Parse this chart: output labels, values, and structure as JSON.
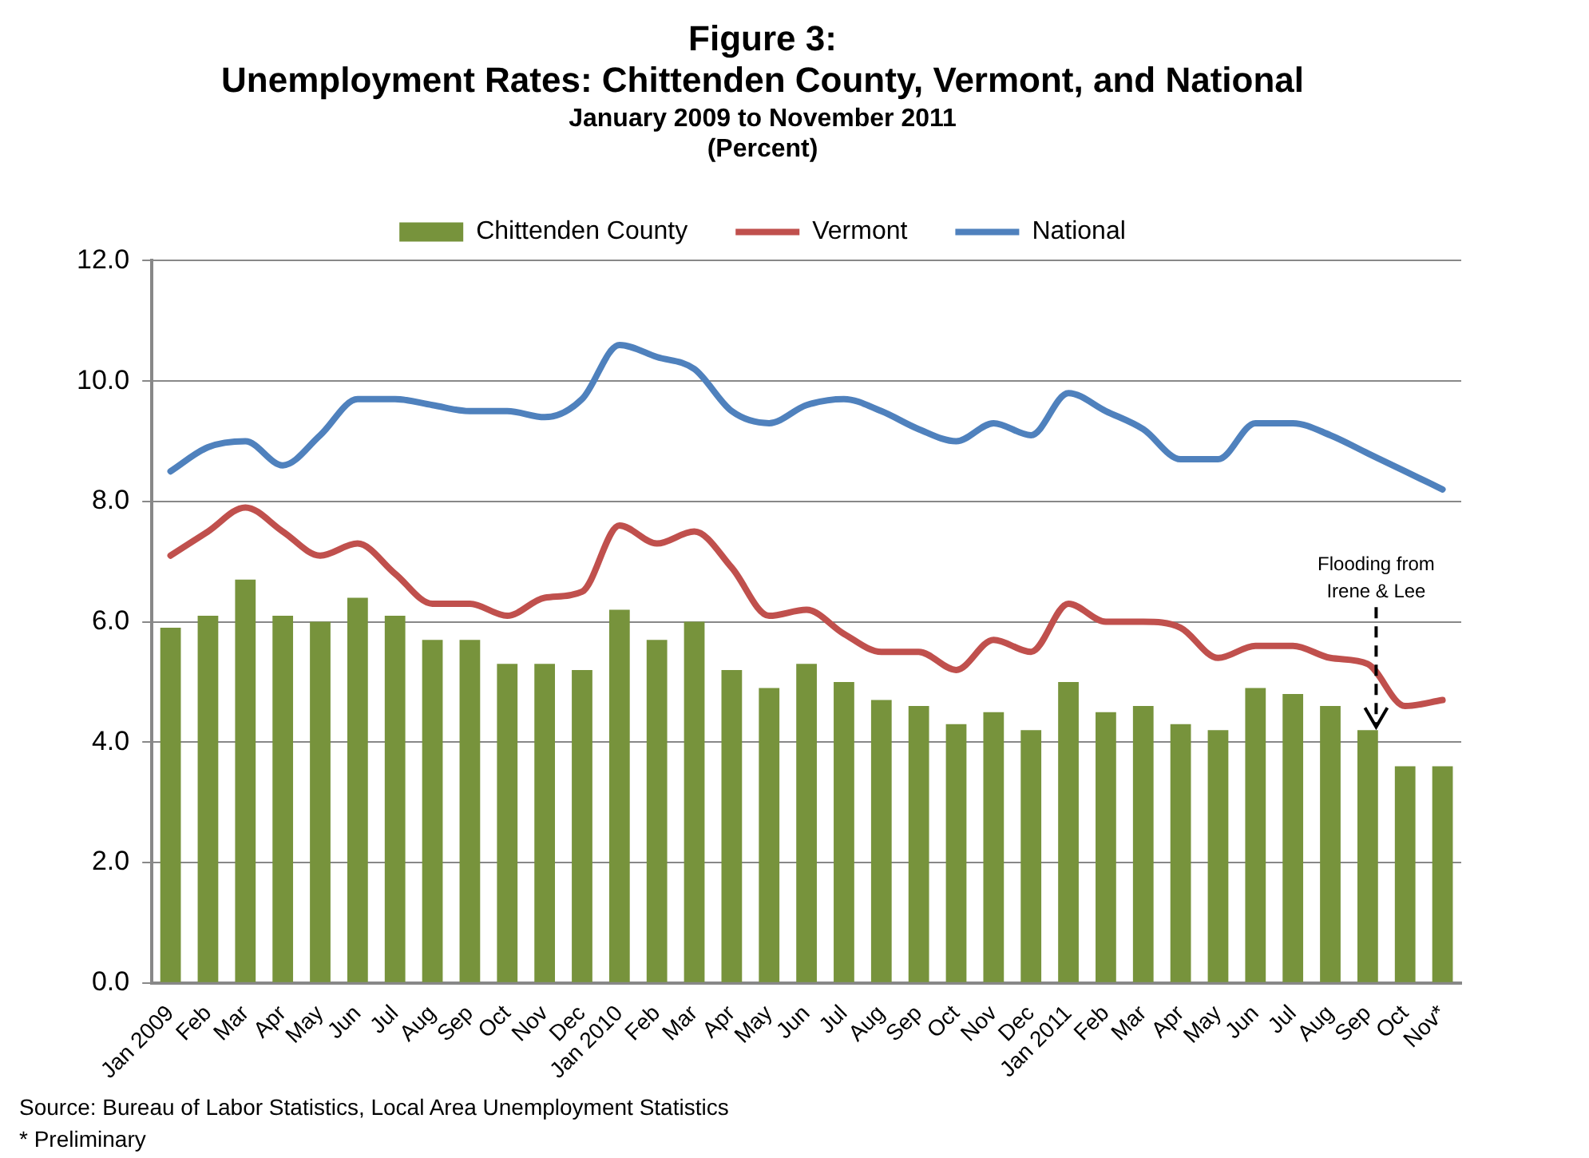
{
  "chart_data": {
    "type": "bar",
    "title": "Figure 3:\nUnemployment Rates: Chittenden County, Vermont, and National",
    "subtitle": "January 2009 to November 2011\n(Percent)",
    "categories": [
      "Jan 2009",
      "Feb",
      "Mar",
      "Apr",
      "May",
      "Jun",
      "Jul",
      "Aug",
      "Sep",
      "Oct",
      "Nov",
      "Dec",
      "Jan 2010",
      "Feb",
      "Mar",
      "Apr",
      "May",
      "Jun",
      "Jul",
      "Aug",
      "Sep",
      "Oct",
      "Nov",
      "Dec",
      "Jan 2011",
      "Feb",
      "Mar",
      "Apr",
      "May",
      "Jun",
      "Jul",
      "Aug",
      "Sep",
      "Oct",
      "Nov*"
    ],
    "series": [
      {
        "name": "Chittenden County",
        "color": "#77933c",
        "values": [
          5.9,
          6.1,
          6.7,
          6.1,
          6.0,
          6.4,
          6.1,
          5.7,
          5.7,
          5.3,
          5.3,
          5.2,
          6.2,
          5.7,
          6.0,
          5.2,
          4.9,
          5.3,
          5.0,
          4.7,
          4.6,
          4.3,
          4.5,
          4.2,
          5.0,
          4.5,
          4.6,
          4.3,
          4.2,
          4.9,
          4.8,
          4.6,
          4.2,
          3.6,
          3.6
        ]
      },
      {
        "name": "Vermont",
        "type": "line",
        "color": "#c0504d",
        "values": [
          7.1,
          7.5,
          7.9,
          7.5,
          7.1,
          7.3,
          6.8,
          6.3,
          6.3,
          6.1,
          6.4,
          6.5,
          7.6,
          7.3,
          7.5,
          6.9,
          6.1,
          6.2,
          5.8,
          5.5,
          5.5,
          5.2,
          5.7,
          5.5,
          6.3,
          6.0,
          6.0,
          5.9,
          5.4,
          5.6,
          5.6,
          5.4,
          5.3,
          4.6,
          4.7
        ]
      },
      {
        "name": "National",
        "type": "line",
        "color": "#4f81bd",
        "values": [
          8.5,
          8.9,
          9.0,
          8.6,
          9.1,
          9.7,
          9.7,
          9.6,
          9.5,
          9.5,
          9.4,
          9.7,
          10.6,
          10.4,
          10.2,
          9.5,
          9.3,
          9.6,
          9.7,
          9.5,
          9.2,
          9.0,
          9.3,
          9.1,
          9.8,
          9.5,
          9.2,
          8.7,
          8.7,
          9.3,
          9.3,
          9.1,
          8.8,
          8.5,
          8.2
        ]
      }
    ],
    "ylim": [
      0,
      12
    ],
    "yticks": [
      {
        "value": 0,
        "label": "0.0"
      },
      {
        "value": 2,
        "label": "2.0"
      },
      {
        "value": 4,
        "label": "4.0"
      },
      {
        "value": 6,
        "label": "6.0"
      },
      {
        "value": 8,
        "label": "8.0"
      },
      {
        "value": 10,
        "label": "10.0"
      },
      {
        "value": 12,
        "label": "12.0"
      }
    ],
    "grid": "y",
    "legend": "top",
    "marker": "none",
    "annotations": [
      {
        "text": "Flooding from\nIrene & Lee",
        "y": 4.2
      },
      "Source: Bureau of Labor Statistics, Local Area Unemployment Statistics",
      "* Preliminary"
    ]
  }
}
